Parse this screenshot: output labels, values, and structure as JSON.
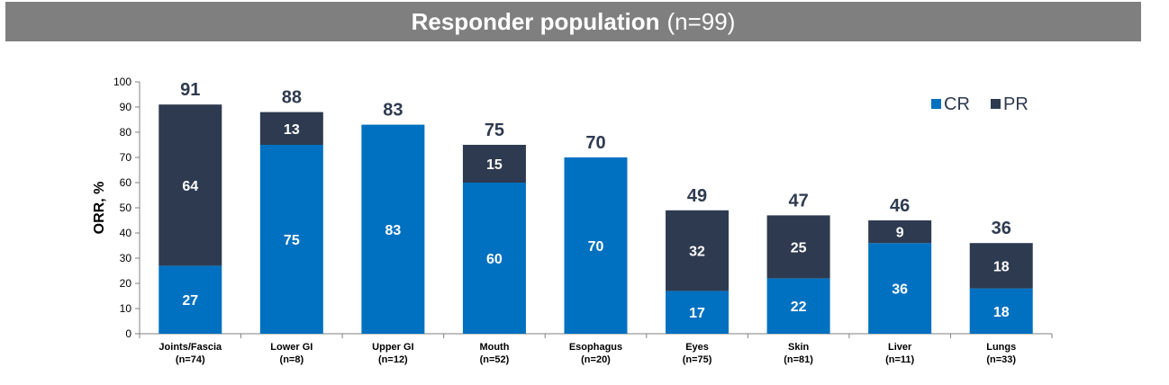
{
  "header": {
    "title": "Responder population",
    "subtitle": "(n=99)"
  },
  "chart_data": {
    "type": "bar",
    "stacked": true,
    "categories": [
      "Joints/Fascia",
      "Lower GI",
      "Upper GI",
      "Mouth",
      "Esophagus",
      "Eyes",
      "Skin",
      "Liver",
      "Lungs"
    ],
    "category_n": [
      "(n=74)",
      "(n=8)",
      "(n=12)",
      "(n=52)",
      "(n=20)",
      "(n=75)",
      "(n=81)",
      "(n=11)",
      "(n=33)"
    ],
    "series": [
      {
        "name": "CR",
        "color": "#0070c0",
        "values": [
          27,
          75,
          83,
          60,
          70,
          17,
          22,
          36,
          18
        ]
      },
      {
        "name": "PR",
        "color": "#2e3a4f",
        "values": [
          64,
          13,
          null,
          15,
          null,
          32,
          25,
          9,
          18
        ]
      }
    ],
    "totals": [
      91,
      88,
      83,
      75,
      70,
      49,
      47,
      46,
      36
    ],
    "ylabel": "ORR, %",
    "ylim": [
      0,
      100
    ],
    "yticks": [
      0,
      10,
      20,
      30,
      40,
      50,
      60,
      70,
      80,
      90,
      100
    ],
    "legend_position": "top-right",
    "grid": false
  }
}
